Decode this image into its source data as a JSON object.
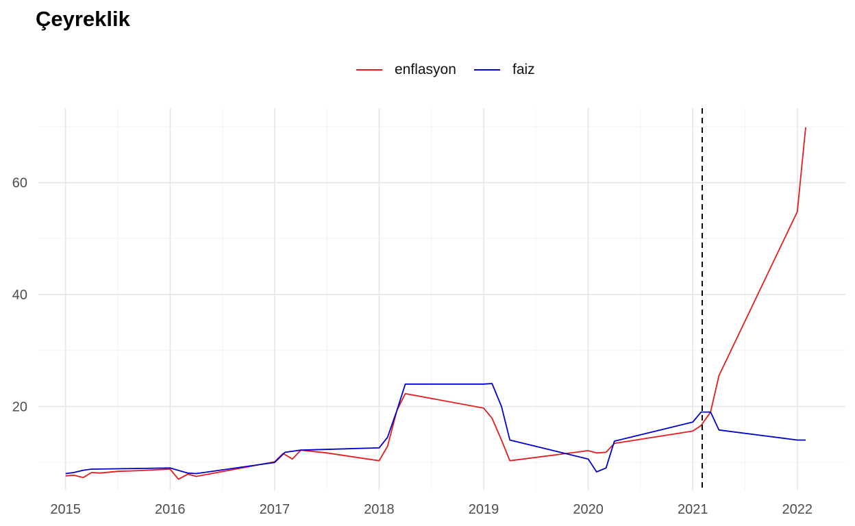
{
  "chart_data": {
    "type": "line",
    "title": "Çeyreklik",
    "xlabel": "",
    "ylabel": "",
    "x_ticks": [
      "2015",
      "2016",
      "2017",
      "2018",
      "2019",
      "2020",
      "2021",
      "2022"
    ],
    "y_ticks": [
      "20",
      "40",
      "60"
    ],
    "xlim": [
      2014.74,
      2022.46
    ],
    "ylim": [
      5.0,
      73.3
    ],
    "grid": true,
    "legend_position": "top",
    "vline": {
      "x": 2021.09,
      "style": "dashed",
      "color": "#000000"
    },
    "series": [
      {
        "name": "enflasyon",
        "color": "#e41a1c",
        "points": [
          [
            2015.0,
            7.6
          ],
          [
            2015.08,
            7.7
          ],
          [
            2015.17,
            7.3
          ],
          [
            2015.25,
            8.2
          ],
          [
            2015.33,
            8.1
          ],
          [
            2015.5,
            8.4
          ],
          [
            2015.67,
            8.5
          ],
          [
            2016.0,
            8.8
          ],
          [
            2016.08,
            7.0
          ],
          [
            2016.17,
            7.9
          ],
          [
            2016.25,
            7.5
          ],
          [
            2017.0,
            10.1
          ],
          [
            2017.08,
            11.6
          ],
          [
            2017.17,
            10.6
          ],
          [
            2017.25,
            12.2
          ],
          [
            2017.5,
            11.7
          ],
          [
            2018.0,
            10.3
          ],
          [
            2018.08,
            12.9
          ],
          [
            2018.17,
            19.3
          ],
          [
            2018.25,
            22.3
          ],
          [
            2019.0,
            19.7
          ],
          [
            2019.08,
            17.9
          ],
          [
            2019.17,
            14.0
          ],
          [
            2019.25,
            10.3
          ],
          [
            2020.0,
            12.1
          ],
          [
            2020.08,
            11.7
          ],
          [
            2020.17,
            11.8
          ],
          [
            2020.25,
            13.4
          ],
          [
            2021.0,
            15.6
          ],
          [
            2021.08,
            16.6
          ],
          [
            2021.17,
            19.0
          ],
          [
            2021.25,
            25.5
          ],
          [
            2022.0,
            54.8
          ],
          [
            2022.08,
            69.9
          ]
        ]
      },
      {
        "name": "faiz",
        "color": "#0000cc",
        "points": [
          [
            2015.0,
            8.0
          ],
          [
            2015.08,
            8.2
          ],
          [
            2015.17,
            8.6
          ],
          [
            2015.25,
            8.8
          ],
          [
            2016.0,
            9.0
          ],
          [
            2016.17,
            8.1
          ],
          [
            2016.25,
            8.0
          ],
          [
            2017.0,
            10.0
          ],
          [
            2017.1,
            11.8
          ],
          [
            2017.25,
            12.2
          ],
          [
            2018.0,
            12.6
          ],
          [
            2018.08,
            14.5
          ],
          [
            2018.17,
            19.3
          ],
          [
            2018.25,
            24.0
          ],
          [
            2019.0,
            24.0
          ],
          [
            2019.08,
            24.1
          ],
          [
            2019.17,
            20.0
          ],
          [
            2019.25,
            14.0
          ],
          [
            2020.0,
            10.6
          ],
          [
            2020.08,
            8.3
          ],
          [
            2020.17,
            9.0
          ],
          [
            2020.25,
            13.8
          ],
          [
            2021.0,
            17.2
          ],
          [
            2021.08,
            19.0
          ],
          [
            2021.17,
            19.0
          ],
          [
            2021.25,
            15.8
          ],
          [
            2022.0,
            14.0
          ],
          [
            2022.08,
            14.0
          ]
        ]
      }
    ]
  }
}
